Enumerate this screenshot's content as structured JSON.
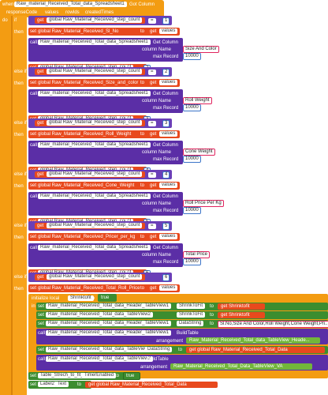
{
  "event": {
    "when": "when",
    "component": "Raw_material_Received_Total_data_Spreadsheet1",
    "event_name": "Got Column",
    "params": [
      "responseCode",
      "values",
      "rowIds",
      "createdTimes"
    ]
  },
  "labels": {
    "do": "do",
    "if": "if",
    "then": "then",
    "else_if": "else if",
    "get": "get",
    "set": "set",
    "to": "to",
    "call": "call",
    "initialize_local": "initialize local",
    "in": "in"
  },
  "blocks": [
    {
      "var": "global Raw_Material_Received_step_count",
      "num": "1",
      "set_var": "global Raw_Material_Received_Sl_No",
      "get_val": "values",
      "sheet": "Raw_material_Received_Total_data_Spreadsheet1",
      "method": "Get Column",
      "column_name_label": "column Name",
      "column_name": "Size And Color",
      "max_record_label": "max Record",
      "max_record": "10000",
      "next_num": "2"
    },
    {
      "var": "global Raw_Material_Received_step_count",
      "num": "2",
      "set_var": "global Raw_Material_Received_Size_and_color",
      "get_val": "values",
      "sheet": "Raw_material_Received_Total_data_Spreadsheet1",
      "method": "Get Column",
      "column_name_label": "column Name",
      "column_name": "Roll Weight",
      "max_record_label": "max Record",
      "max_record": "10000",
      "next_num": "3"
    },
    {
      "var": "global Raw_Material_Received_step_count",
      "num": "3",
      "set_var": "global Raw_Material_Received_Roll_Weight",
      "get_val": "values",
      "sheet": "Raw_material_Received_Total_data_Spreadsheet1",
      "method": "Get Column",
      "column_name_label": "column Name",
      "column_name": "Cone Weight",
      "max_record_label": "max Record",
      "max_record": "10000",
      "next_num": "4"
    },
    {
      "var": "global Raw_Material_Received_step_count",
      "num": "4",
      "set_var": "global Raw_Material_Received_Cone_Weight",
      "get_val": "values",
      "sheet": "Raw_material_Received_Total_data_Spreadsheet1",
      "method": "Get Column",
      "column_name_label": "column Name",
      "column_name": "Roll Price Per Kg",
      "max_record_label": "max Record",
      "max_record": "10000",
      "next_num": "5"
    },
    {
      "var": "global Raw_Material_Received_step_count",
      "num": "5",
      "set_var": "global Raw_Material_Received_Pricer_per_kg",
      "get_val": "values",
      "sheet": "Raw_material_Received_Total_data_Spreadsheet1",
      "method": "Get Column",
      "column_name_label": "column Name",
      "column_name": "Total Price",
      "max_record_label": "max Record",
      "max_record": "10000",
      "next_num": "6"
    }
  ],
  "final": {
    "var": "global Raw_Material_Received_step_count",
    "num": "6",
    "set_var": "global Raw_Material_Received_Total_Roll_Price",
    "get_val": "values",
    "local_name": "Shrinktofit",
    "local_val": "true",
    "row1_comp": "Raw_material_Received_Total_data_Header_TableView1",
    "row1_prop": "ShrinkToFit",
    "row1_get": "get Shrinktofit",
    "row2_comp": "Raw_material_Received_Total_data_TableView2",
    "row2_prop": "ShrinkToFit",
    "row2_get": "get Shrinktofit",
    "row3_comp": "Raw_material_Received_Total_data_Header_TableView1",
    "row3_prop": "DataString",
    "row3_val": "Sl.No,Size And Color,Roll Weight,Cone Weight,Pri...",
    "call1_comp": "Raw_material_Received_Total_data_Header_TableView1",
    "call1_method": "BuildTable",
    "arrangement_label": "arrangement",
    "call1_arr": "Raw_Material_Received_Total_data_TableView_Heade...",
    "row4_comp": "Raw_material_Received_Total_data_TableView2",
    "row4_prop": "DataString",
    "row4_get": "get global Raw_Material_Received_Total_Data",
    "call2_comp": "Raw_material_Received_Total_data_TableView2",
    "call2_method": "BuildTable",
    "call2_arr": "Raw_Material_Received_Total_Data_TableView_VA",
    "row5_comp": "Table_Strech_to_fit_Clock2",
    "row5_prop": "TimerEnabled",
    "row5_val": "true",
    "row6_comp": "Label2",
    "row6_prop": "Text",
    "row6_get": "get global Raw_Material_Received_Total_Data"
  }
}
